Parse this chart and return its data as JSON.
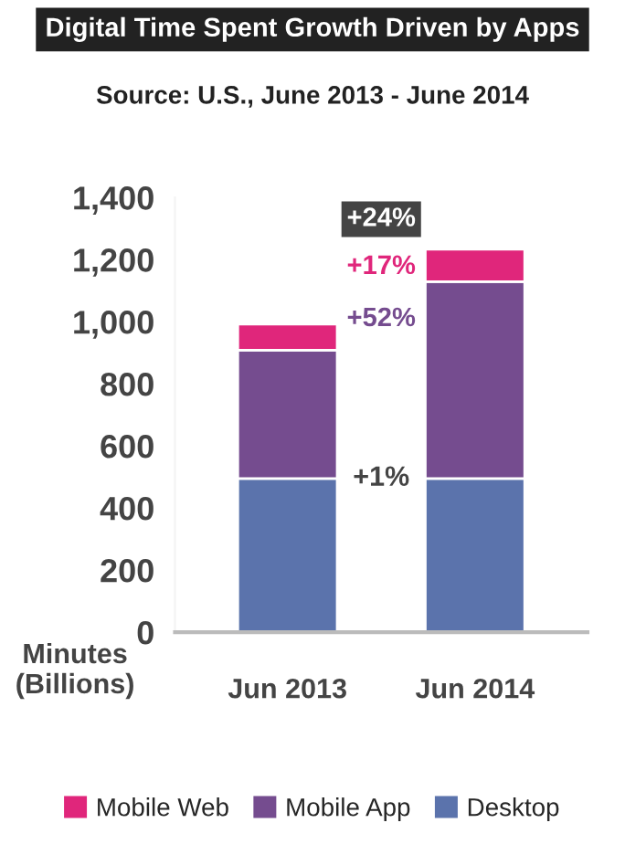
{
  "chart_data": {
    "type": "bar",
    "title": "Digital Time Spent Growth Driven by Apps",
    "subtitle": "Source: U.S., June 2013 - June 2014",
    "ylabel": "Minutes\n(Billions)",
    "categories": [
      "Jun 2013",
      "Jun 2014"
    ],
    "stacked": true,
    "series": [
      {
        "name": "Desktop",
        "color": "#5b73ac",
        "values": [
          495,
          495
        ]
      },
      {
        "name": "Mobile App",
        "color": "#754c8f",
        "values": [
          413,
          634
        ]
      },
      {
        "name": "Mobile Web",
        "color": "#e0267b",
        "values": [
          84,
          104
        ]
      }
    ],
    "ylim": [
      0,
      1400
    ],
    "yticks": [
      0,
      200,
      400,
      600,
      800,
      {
        "value": 1000,
        "label": "1,000"
      },
      {
        "value": 1200,
        "label": "1,200"
      },
      {
        "value": 1400,
        "label": "1,400"
      }
    ],
    "annotations": [
      "+24%",
      "+17%",
      "+52%",
      {
        "text": "+1%",
        "y": 495
      }
    ],
    "grid": false,
    "legend": "bottom"
  }
}
